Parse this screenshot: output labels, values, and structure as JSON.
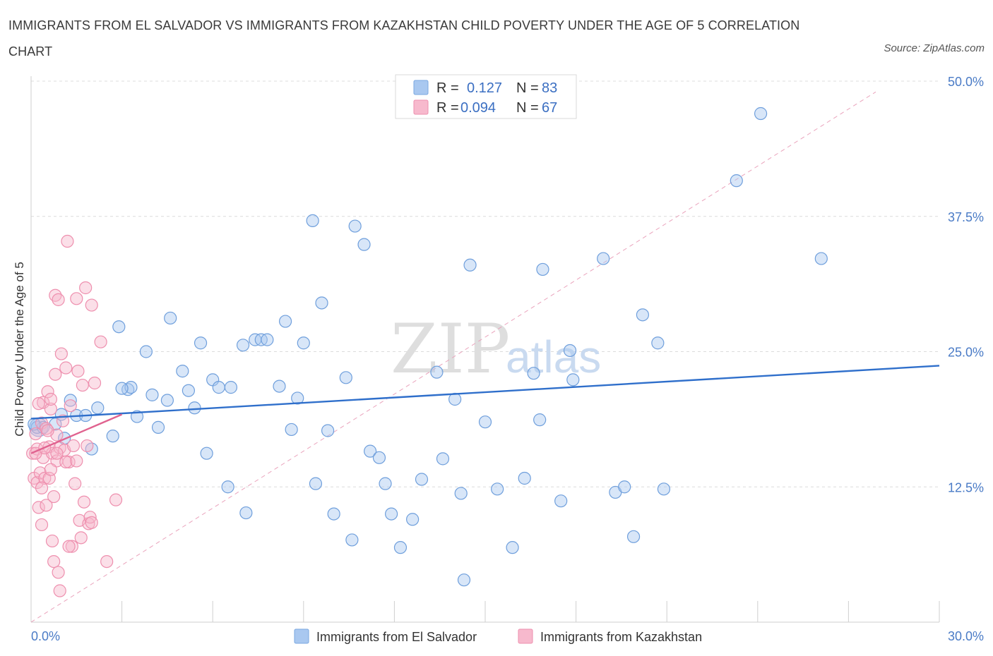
{
  "chart_data": {
    "type": "scatter",
    "title": "IMMIGRANTS FROM EL SALVADOR VS IMMIGRANTS FROM KAZAKHSTAN CHILD POVERTY UNDER THE AGE OF 5 CORRELATION CHART",
    "source": "Source: ZipAtlas.com",
    "ylabel": "Child Poverty Under the Age of 5",
    "xlim": [
      0,
      30
    ],
    "ylim": [
      0,
      50
    ],
    "x_tick_labels": [
      "0.0%",
      "30.0%"
    ],
    "y_ticks": [
      12.5,
      25.0,
      37.5,
      50.0
    ],
    "y_tick_labels": [
      "12.5%",
      "25.0%",
      "37.5%",
      "50.0%"
    ],
    "watermark": {
      "zip": "ZIP",
      "atlas": "atlas"
    },
    "legend": {
      "r_label": "R =",
      "n_label": "N =",
      "entries": [
        {
          "r": "0.127",
          "n": "83",
          "color": "#a9c8f0",
          "stroke": "#7aa7e0"
        },
        {
          "r": "0.094",
          "n": "67",
          "color": "#f7b9cd",
          "stroke": "#ee8fae"
        }
      ]
    },
    "series": [
      {
        "name": "Immigrants from El Salvador",
        "color": "#a9c8f0",
        "stroke": "#6f9fdc",
        "trend": {
          "x": [
            0,
            30
          ],
          "y": [
            18.8,
            23.7
          ],
          "color": "#2f6fcb"
        },
        "points": [
          [
            0.2,
            18.0
          ],
          [
            0.4,
            18.0
          ],
          [
            0.8,
            18.3
          ],
          [
            1.0,
            19.2
          ],
          [
            1.3,
            20.5
          ],
          [
            1.5,
            19.1
          ],
          [
            1.8,
            19.1
          ],
          [
            2.0,
            16.0
          ],
          [
            2.2,
            19.8
          ],
          [
            2.7,
            17.2
          ],
          [
            2.9,
            27.3
          ],
          [
            3.2,
            21.5
          ],
          [
            3.3,
            21.7
          ],
          [
            3.5,
            19.0
          ],
          [
            3.8,
            25.0
          ],
          [
            4.0,
            21.0
          ],
          [
            4.2,
            18.0
          ],
          [
            4.5,
            20.5
          ],
          [
            4.6,
            28.1
          ],
          [
            5.0,
            23.2
          ],
          [
            5.2,
            21.4
          ],
          [
            5.4,
            19.8
          ],
          [
            5.6,
            25.8
          ],
          [
            5.8,
            15.6
          ],
          [
            6.0,
            22.4
          ],
          [
            6.2,
            21.7
          ],
          [
            6.5,
            12.5
          ],
          [
            6.6,
            21.7
          ],
          [
            7.0,
            25.6
          ],
          [
            7.1,
            10.1
          ],
          [
            7.4,
            26.1
          ],
          [
            7.6,
            26.1
          ],
          [
            7.8,
            26.1
          ],
          [
            8.2,
            21.8
          ],
          [
            8.4,
            27.8
          ],
          [
            8.6,
            17.8
          ],
          [
            8.8,
            20.7
          ],
          [
            9.0,
            25.8
          ],
          [
            9.3,
            37.1
          ],
          [
            9.4,
            12.8
          ],
          [
            9.6,
            29.5
          ],
          [
            9.8,
            17.7
          ],
          [
            10.0,
            10.0
          ],
          [
            10.4,
            22.6
          ],
          [
            10.6,
            7.6
          ],
          [
            10.7,
            36.6
          ],
          [
            11.0,
            34.9
          ],
          [
            11.2,
            15.8
          ],
          [
            11.5,
            15.2
          ],
          [
            11.7,
            12.8
          ],
          [
            11.9,
            10.0
          ],
          [
            12.2,
            6.9
          ],
          [
            12.6,
            9.5
          ],
          [
            12.9,
            13.2
          ],
          [
            13.4,
            23.1
          ],
          [
            13.6,
            15.1
          ],
          [
            14.0,
            20.6
          ],
          [
            14.2,
            11.9
          ],
          [
            14.3,
            3.9
          ],
          [
            14.5,
            33.0
          ],
          [
            15.0,
            18.5
          ],
          [
            15.4,
            12.3
          ],
          [
            15.9,
            6.9
          ],
          [
            16.3,
            13.3
          ],
          [
            16.6,
            23.0
          ],
          [
            16.8,
            18.7
          ],
          [
            16.9,
            32.6
          ],
          [
            17.5,
            11.2
          ],
          [
            17.8,
            25.1
          ],
          [
            17.9,
            22.4
          ],
          [
            18.9,
            33.6
          ],
          [
            19.3,
            12.0
          ],
          [
            19.6,
            12.5
          ],
          [
            19.9,
            7.9
          ],
          [
            20.2,
            28.4
          ],
          [
            20.7,
            25.8
          ],
          [
            20.9,
            12.3
          ],
          [
            23.3,
            40.8
          ],
          [
            24.1,
            47.0
          ],
          [
            26.1,
            33.6
          ],
          [
            0.1,
            18.3
          ],
          [
            1.1,
            17.0
          ],
          [
            3.0,
            21.6
          ]
        ],
        "large_points": [
          [
            0.25,
            18.0
          ]
        ]
      },
      {
        "name": "Immigrants from Kazakhstan",
        "color": "#f7b9cd",
        "stroke": "#ee8fae",
        "trend": {
          "x": [
            0,
            3.0
          ],
          "y": [
            15.6,
            19.2
          ],
          "color": "#e0628f"
        },
        "points": [
          [
            0.05,
            15.6
          ],
          [
            0.1,
            13.3
          ],
          [
            0.15,
            17.4
          ],
          [
            0.2,
            16.0
          ],
          [
            0.2,
            12.9
          ],
          [
            0.25,
            10.6
          ],
          [
            0.3,
            13.8
          ],
          [
            0.35,
            18.4
          ],
          [
            0.35,
            9.0
          ],
          [
            0.4,
            20.3
          ],
          [
            0.4,
            15.2
          ],
          [
            0.45,
            13.3
          ],
          [
            0.5,
            17.9
          ],
          [
            0.5,
            10.8
          ],
          [
            0.55,
            21.3
          ],
          [
            0.6,
            16.2
          ],
          [
            0.6,
            13.3
          ],
          [
            0.65,
            19.7
          ],
          [
            0.7,
            15.6
          ],
          [
            0.7,
            7.5
          ],
          [
            0.75,
            11.6
          ],
          [
            0.75,
            5.6
          ],
          [
            0.8,
            30.2
          ],
          [
            0.8,
            22.9
          ],
          [
            0.85,
            17.3
          ],
          [
            0.85,
            14.9
          ],
          [
            0.9,
            29.8
          ],
          [
            0.9,
            4.6
          ],
          [
            0.95,
            16.1
          ],
          [
            0.95,
            2.9
          ],
          [
            1.0,
            24.8
          ],
          [
            1.05,
            18.6
          ],
          [
            1.1,
            15.9
          ],
          [
            1.15,
            23.5
          ],
          [
            1.2,
            35.2
          ],
          [
            1.25,
            14.8
          ],
          [
            1.3,
            20.0
          ],
          [
            1.35,
            7.0
          ],
          [
            1.4,
            16.3
          ],
          [
            1.45,
            12.8
          ],
          [
            1.5,
            29.9
          ],
          [
            1.55,
            23.2
          ],
          [
            1.6,
            9.4
          ],
          [
            1.65,
            7.8
          ],
          [
            1.7,
            21.9
          ],
          [
            1.75,
            11.1
          ],
          [
            1.8,
            30.9
          ],
          [
            1.85,
            16.3
          ],
          [
            1.9,
            9.1
          ],
          [
            1.95,
            9.7
          ],
          [
            2.0,
            9.2
          ],
          [
            2.1,
            22.1
          ],
          [
            2.3,
            25.9
          ],
          [
            2.5,
            5.6
          ],
          [
            2.8,
            11.3
          ],
          [
            1.25,
            7.0
          ],
          [
            0.35,
            12.4
          ],
          [
            0.65,
            14.1
          ],
          [
            0.55,
            17.7
          ],
          [
            0.15,
            15.6
          ],
          [
            0.45,
            16.1
          ],
          [
            1.15,
            14.8
          ],
          [
            0.85,
            15.6
          ],
          [
            1.5,
            14.9
          ],
          [
            2.0,
            29.3
          ],
          [
            0.25,
            20.2
          ],
          [
            0.65,
            20.6
          ]
        ]
      }
    ],
    "axis_labels_bottom": [
      "Immigrants from El Salvador",
      "Immigrants from Kazakhstan"
    ]
  }
}
